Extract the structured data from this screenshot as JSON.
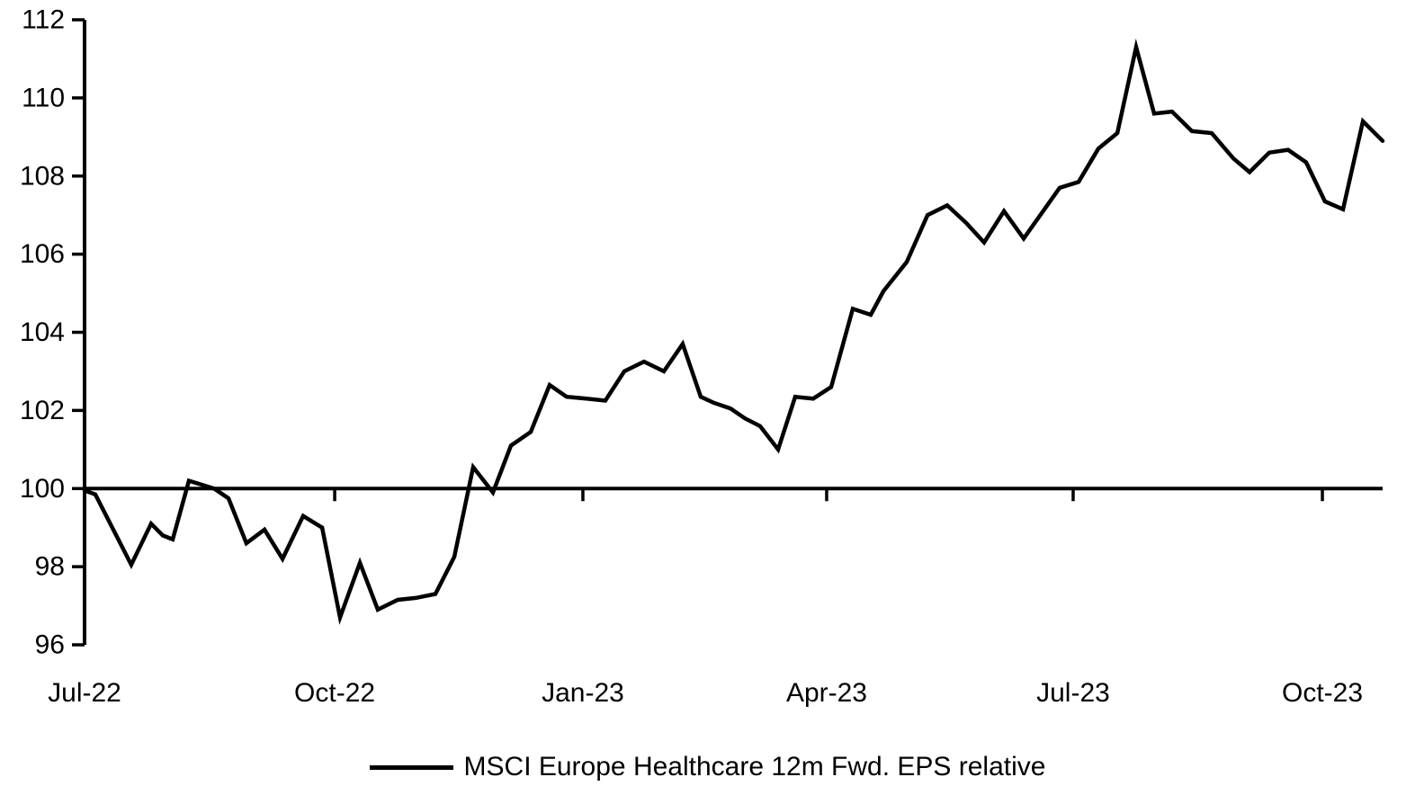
{
  "chart_data": {
    "type": "line",
    "title": "",
    "xlabel": "",
    "ylabel": "",
    "background_color": "#ffffff",
    "axis_color": "#000000",
    "grid": false,
    "legend_position": "bottom-center",
    "y_axis": {
      "min": 96,
      "max": 112,
      "tick_step": 2,
      "ticks": [
        96,
        98,
        100,
        102,
        104,
        106,
        108,
        110,
        112
      ]
    },
    "baseline_value": 100,
    "x_axis": {
      "ticks": [
        {
          "label": "Jul-22",
          "pos": 0.0
        },
        {
          "label": "Oct-22",
          "pos": 0.1927
        },
        {
          "label": "Jan-23",
          "pos": 0.3839
        },
        {
          "label": "Apr-23",
          "pos": 0.5717
        },
        {
          "label": "Jul-23",
          "pos": 0.7616
        },
        {
          "label": "Oct-23",
          "pos": 0.9536
        }
      ]
    },
    "series": [
      {
        "name": "MSCI Europe Healthcare 12m Fwd. EPS relative",
        "color": "#000000",
        "points": [
          [
            0.0,
            99.95
          ],
          [
            0.0083,
            99.85
          ],
          [
            0.036,
            98.05
          ],
          [
            0.0513,
            99.1
          ],
          [
            0.0603,
            98.8
          ],
          [
            0.0679,
            98.7
          ],
          [
            0.0804,
            100.2
          ],
          [
            0.0901,
            100.1
          ],
          [
            0.0998,
            100.0
          ],
          [
            0.1109,
            99.75
          ],
          [
            0.1247,
            98.6
          ],
          [
            0.1386,
            98.95
          ],
          [
            0.1525,
            98.2
          ],
          [
            0.1684,
            99.3
          ],
          [
            0.183,
            99.0
          ],
          [
            0.1968,
            96.7
          ],
          [
            0.2121,
            98.1
          ],
          [
            0.2259,
            96.9
          ],
          [
            0.2412,
            97.15
          ],
          [
            0.255,
            97.2
          ],
          [
            0.2703,
            97.3
          ],
          [
            0.2848,
            98.25
          ],
          [
            0.2994,
            100.55
          ],
          [
            0.3146,
            99.9
          ],
          [
            0.3285,
            101.1
          ],
          [
            0.3437,
            101.45
          ],
          [
            0.3583,
            102.65
          ],
          [
            0.3714,
            102.35
          ],
          [
            0.3867,
            102.3
          ],
          [
            0.4012,
            102.25
          ],
          [
            0.4158,
            103.0
          ],
          [
            0.431,
            103.25
          ],
          [
            0.4463,
            103.0
          ],
          [
            0.4608,
            103.7
          ],
          [
            0.4747,
            102.35
          ],
          [
            0.4844,
            102.2
          ],
          [
            0.4976,
            102.05
          ],
          [
            0.5086,
            101.8
          ],
          [
            0.5204,
            101.6
          ],
          [
            0.5343,
            101.0
          ],
          [
            0.5475,
            102.35
          ],
          [
            0.5613,
            102.3
          ],
          [
            0.5752,
            102.6
          ],
          [
            0.5918,
            104.6
          ],
          [
            0.6057,
            104.45
          ],
          [
            0.6154,
            105.05
          ],
          [
            0.6334,
            105.8
          ],
          [
            0.6494,
            107.0
          ],
          [
            0.6646,
            107.25
          ],
          [
            0.6792,
            106.8
          ],
          [
            0.693,
            106.3
          ],
          [
            0.7083,
            107.1
          ],
          [
            0.7235,
            106.4
          ],
          [
            0.7512,
            107.7
          ],
          [
            0.7658,
            107.85
          ],
          [
            0.781,
            108.7
          ],
          [
            0.7956,
            109.1
          ],
          [
            0.8101,
            111.3
          ],
          [
            0.824,
            109.6
          ],
          [
            0.8378,
            109.65
          ],
          [
            0.8531,
            109.15
          ],
          [
            0.8683,
            109.1
          ],
          [
            0.885,
            108.45
          ],
          [
            0.8975,
            108.1
          ],
          [
            0.9127,
            108.6
          ],
          [
            0.9272,
            108.67
          ],
          [
            0.9411,
            108.35
          ],
          [
            0.9556,
            107.35
          ],
          [
            0.9695,
            107.15
          ],
          [
            0.9848,
            109.4
          ],
          [
            1.0,
            108.9
          ]
        ]
      }
    ]
  }
}
